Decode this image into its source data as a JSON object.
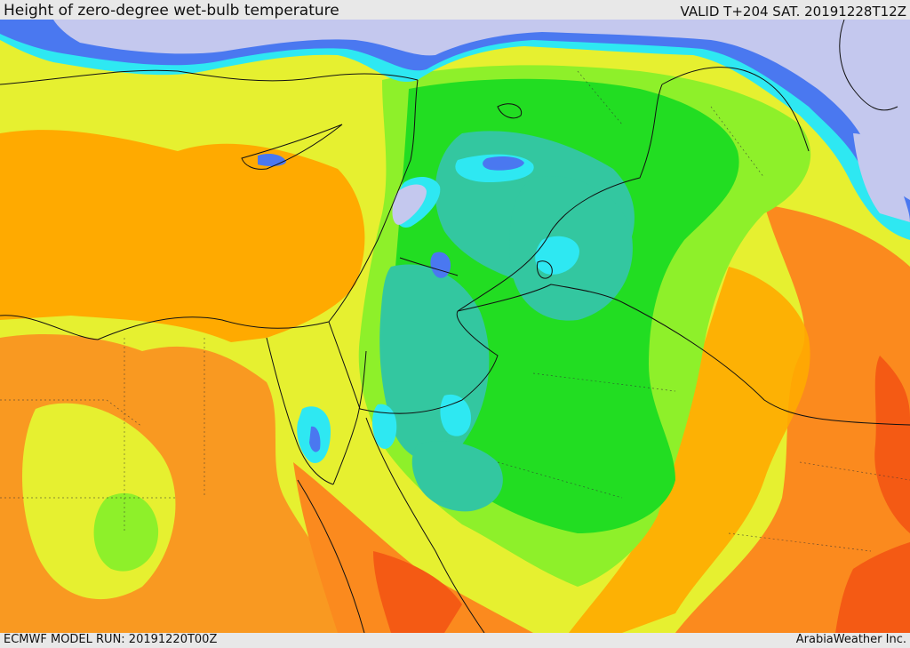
{
  "header": {
    "title": "Height of zero-degree wet-bulb temperature",
    "valid": "VALID T+204 SAT. 20191228T12Z"
  },
  "footer": {
    "model_run": "ECMWF MODEL RUN: 20191220T00Z",
    "credit": "ArabiaWeather Inc."
  },
  "colors": {
    "lavender": "#c4c8ee",
    "blue": "#4a78f0",
    "cyan": "#2ee8f2",
    "teal": "#33c7a0",
    "green": "#22dd22",
    "lime": "#8ef02a",
    "yellow": "#e6f030",
    "orange_light": "#ffaa00",
    "orange": "#fb8a1e",
    "red": "#f45a14",
    "border": "#111111"
  }
}
